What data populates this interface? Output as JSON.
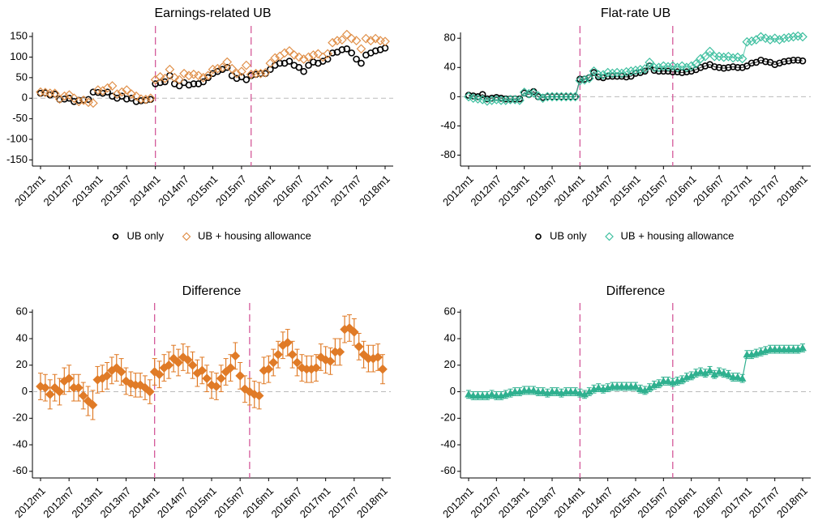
{
  "chart_data": [
    {
      "type": "scatter",
      "title": "Earnings-related UB",
      "legend": "bottom",
      "categories": [
        "2012m1",
        null,
        null,
        null,
        null,
        null,
        "2012m7",
        null,
        null,
        null,
        null,
        null,
        "2013m1",
        null,
        null,
        null,
        null,
        null,
        "2013m7",
        null,
        null,
        null,
        null,
        null,
        "2014m1",
        null,
        null,
        null,
        null,
        null,
        "2014m7",
        null,
        null,
        null,
        null,
        null,
        "2015m1",
        null,
        null,
        null,
        null,
        null,
        "2015m7",
        null,
        null,
        null,
        null,
        null,
        "2016m1",
        null,
        null,
        null,
        null,
        null,
        "2016m7",
        null,
        null,
        null,
        null,
        null,
        "2017m1",
        null,
        null,
        null,
        null,
        null,
        "2017m7",
        null,
        null,
        null,
        null,
        null,
        "2018m1"
      ],
      "ylim": [
        -165,
        160
      ],
      "yticks": [
        -150,
        -100,
        -50,
        0,
        50,
        100,
        150
      ],
      "hline": 0,
      "vlines": [
        24,
        44
      ],
      "series": [
        {
          "name": "UB only",
          "color": "#000000",
          "marker": "circle",
          "line": false,
          "values": [
            12,
            13,
            8,
            10,
            -3,
            -2,
            0,
            -8,
            -5,
            -4,
            -3,
            15,
            14,
            12,
            15,
            5,
            0,
            5,
            -2,
            0,
            -8,
            -6,
            -5,
            -3,
            35,
            38,
            40,
            55,
            35,
            30,
            38,
            32,
            35,
            35,
            40,
            50,
            60,
            65,
            70,
            75,
            55,
            48,
            52,
            45,
            55,
            58,
            60,
            60,
            70,
            80,
            85,
            85,
            90,
            80,
            75,
            65,
            80,
            88,
            85,
            90,
            95,
            110,
            112,
            118,
            120,
            110,
            95,
            85,
            105,
            110,
            115,
            118,
            122
          ]
        },
        {
          "name": "UB + housing allowance",
          "color": "#e0904a",
          "marker": "diamond",
          "line": false,
          "values": [
            15,
            14,
            12,
            12,
            -2,
            5,
            8,
            0,
            -8,
            -5,
            -10,
            -12,
            20,
            18,
            25,
            30,
            10,
            15,
            20,
            10,
            5,
            -2,
            -3,
            0,
            45,
            52,
            48,
            70,
            50,
            45,
            60,
            55,
            58,
            55,
            50,
            55,
            70,
            72,
            75,
            88,
            72,
            60,
            65,
            80,
            58,
            60,
            60,
            62,
            85,
            98,
            102,
            110,
            115,
            105,
            100,
            95,
            100,
            105,
            108,
            100,
            108,
            135,
            140,
            142,
            155,
            145,
            140,
            120,
            145,
            140,
            145,
            140,
            138
          ]
        }
      ]
    },
    {
      "type": "scatter",
      "title": "Flat-rate UB",
      "legend": "bottom",
      "categories": [
        "2012m1",
        null,
        null,
        null,
        null,
        null,
        "2012m7",
        null,
        null,
        null,
        null,
        null,
        "2013m1",
        null,
        null,
        null,
        null,
        null,
        "2013m7",
        null,
        null,
        null,
        null,
        null,
        "2014m1",
        null,
        null,
        null,
        null,
        null,
        "2014m7",
        null,
        null,
        null,
        null,
        null,
        "2015m1",
        null,
        null,
        null,
        null,
        null,
        "2015m7",
        null,
        null,
        null,
        null,
        null,
        "2016m1",
        null,
        null,
        null,
        null,
        null,
        "2016m7",
        null,
        null,
        null,
        null,
        null,
        "2017m1",
        null,
        null,
        null,
        null,
        null,
        "2017m7",
        null,
        null,
        null,
        null,
        null,
        "2018m1"
      ],
      "ylim": [
        -95,
        88
      ],
      "yticks": [
        -80,
        -40,
        0,
        40,
        80
      ],
      "hline": 0,
      "vlines": [
        24,
        44
      ],
      "series": [
        {
          "name": "UB only",
          "color": "#000000",
          "marker": "circle",
          "line": true,
          "values": [
            2,
            1,
            0,
            3,
            -3,
            -2,
            -1,
            -2,
            -3,
            -3,
            -3,
            -3,
            5,
            3,
            7,
            0,
            -1,
            0,
            0,
            0,
            0,
            0,
            0,
            0,
            24,
            24,
            26,
            33,
            27,
            26,
            28,
            28,
            28,
            28,
            27,
            28,
            32,
            33,
            35,
            42,
            36,
            35,
            35,
            35,
            34,
            34,
            33,
            34,
            35,
            37,
            40,
            42,
            44,
            41,
            40,
            39,
            40,
            41,
            40,
            40,
            42,
            46,
            47,
            50,
            48,
            47,
            44,
            46,
            48,
            49,
            50,
            50,
            49
          ]
        },
        {
          "name": "UB + housing allowance",
          "color": "#3dbf9f",
          "marker": "diamond",
          "line": true,
          "values": [
            0,
            -2,
            -3,
            -4,
            -6,
            -5,
            -4,
            -5,
            -5,
            -4,
            -4,
            -5,
            6,
            4,
            5,
            1,
            -2,
            0,
            0,
            0,
            0,
            0,
            0,
            0,
            22,
            23,
            25,
            35,
            30,
            30,
            33,
            32,
            33,
            32,
            34,
            35,
            36,
            37,
            38,
            47,
            40,
            40,
            42,
            41,
            42,
            40,
            42,
            40,
            42,
            45,
            52,
            55,
            62,
            55,
            55,
            54,
            55,
            53,
            54,
            52,
            75,
            76,
            78,
            82,
            80,
            78,
            80,
            78,
            80,
            81,
            82,
            83,
            82
          ]
        }
      ]
    },
    {
      "type": "errorbar",
      "title": "Difference",
      "categories": [
        "2012m1",
        null,
        null,
        null,
        null,
        null,
        "2012m7",
        null,
        null,
        null,
        null,
        null,
        "2013m1",
        null,
        null,
        null,
        null,
        null,
        "2013m7",
        null,
        null,
        null,
        null,
        null,
        "2014m1",
        null,
        null,
        null,
        null,
        null,
        "2014m7",
        null,
        null,
        null,
        null,
        null,
        "2015m1",
        null,
        null,
        null,
        null,
        null,
        "2015m7",
        null,
        null,
        null,
        null,
        null,
        "2016m1",
        null,
        null,
        null,
        null,
        null,
        "2016m7",
        null,
        null,
        null,
        null,
        null,
        "2017m1",
        null,
        null,
        null,
        null,
        null,
        "2017m7",
        null,
        null,
        null,
        null,
        null,
        "2018m1"
      ],
      "ylim": [
        -65,
        62
      ],
      "yticks": [
        -60,
        -40,
        -20,
        0,
        20,
        40,
        60
      ],
      "hline": 0,
      "vlines": [
        24,
        44
      ],
      "series": [
        {
          "color": "#e07b27",
          "marker": "diamond-filled",
          "line": false,
          "values": [
            4,
            3,
            -2,
            3,
            0,
            8,
            10,
            3,
            3,
            -3,
            -7,
            -10,
            9,
            10,
            12,
            16,
            18,
            15,
            8,
            6,
            5,
            5,
            3,
            0,
            15,
            13,
            18,
            20,
            25,
            22,
            26,
            24,
            20,
            14,
            16,
            10,
            5,
            4,
            10,
            15,
            18,
            27,
            12,
            2,
            0,
            -2,
            -3,
            16,
            17,
            22,
            28,
            35,
            37,
            28,
            22,
            18,
            17,
            17,
            18,
            26,
            24,
            23,
            30,
            30,
            47,
            48,
            45,
            34,
            28,
            25,
            25,
            26,
            17
          ],
          "errors": [
            10,
            10,
            11,
            10,
            10,
            10,
            10,
            10,
            10,
            10,
            11,
            11,
            10,
            10,
            10,
            10,
            10,
            10,
            10,
            9,
            9,
            9,
            9,
            9,
            10,
            10,
            10,
            10,
            10,
            10,
            10,
            10,
            10,
            10,
            10,
            10,
            10,
            10,
            10,
            10,
            10,
            10,
            10,
            10,
            10,
            10,
            10,
            10,
            10,
            10,
            10,
            10,
            10,
            10,
            10,
            10,
            10,
            10,
            10,
            10,
            10,
            10,
            10,
            10,
            10,
            10,
            10,
            10,
            10,
            10,
            10,
            10,
            11
          ]
        }
      ]
    },
    {
      "type": "errorbar",
      "title": "Difference",
      "categories": [
        "2012m1",
        null,
        null,
        null,
        null,
        null,
        "2012m7",
        null,
        null,
        null,
        null,
        null,
        "2013m1",
        null,
        null,
        null,
        null,
        null,
        "2013m7",
        null,
        null,
        null,
        null,
        null,
        "2014m1",
        null,
        null,
        null,
        null,
        null,
        "2014m7",
        null,
        null,
        null,
        null,
        null,
        "2015m1",
        null,
        null,
        null,
        null,
        null,
        "2015m7",
        null,
        null,
        null,
        null,
        null,
        "2016m1",
        null,
        null,
        null,
        null,
        null,
        "2016m7",
        null,
        null,
        null,
        null,
        null,
        "2017m1",
        null,
        null,
        null,
        null,
        null,
        "2017m7",
        null,
        null,
        null,
        null,
        null,
        "2018m1"
      ],
      "ylim": [
        -65,
        62
      ],
      "yticks": [
        -60,
        -40,
        -20,
        0,
        20,
        40,
        60
      ],
      "hline": 0,
      "vlines": [
        24,
        44
      ],
      "series": [
        {
          "color": "#2fb08f",
          "marker": "triangle",
          "line": true,
          "values": [
            -2,
            -3,
            -3,
            -3,
            -3,
            -2,
            -3,
            -3,
            -2,
            -1,
            0,
            0,
            1,
            1,
            1,
            0,
            0,
            -1,
            0,
            0,
            -1,
            0,
            0,
            0,
            -1,
            -2,
            0,
            2,
            3,
            2,
            3,
            4,
            4,
            4,
            4,
            4,
            4,
            2,
            1,
            3,
            5,
            6,
            8,
            8,
            7,
            8,
            9,
            11,
            12,
            14,
            15,
            14,
            16,
            13,
            15,
            14,
            13,
            11,
            11,
            10,
            28,
            28,
            29,
            30,
            31,
            32,
            32,
            32,
            32,
            32,
            32,
            32,
            33
          ],
          "errors": [
            3,
            3,
            3,
            3,
            3,
            3,
            3,
            3,
            3,
            3,
            3,
            3,
            3,
            3,
            3,
            3,
            3,
            3,
            3,
            3,
            3,
            3,
            3,
            3,
            3,
            3,
            3,
            3,
            3,
            3,
            3,
            3,
            3,
            3,
            3,
            3,
            3,
            3,
            3,
            3,
            3,
            3,
            3,
            3,
            3,
            3,
            3,
            3,
            3,
            3,
            3,
            3,
            3,
            3,
            3,
            3,
            3,
            3,
            3,
            3,
            3,
            3,
            3,
            3,
            3,
            3,
            3,
            3,
            3,
            3,
            3,
            3,
            3
          ]
        }
      ]
    }
  ]
}
